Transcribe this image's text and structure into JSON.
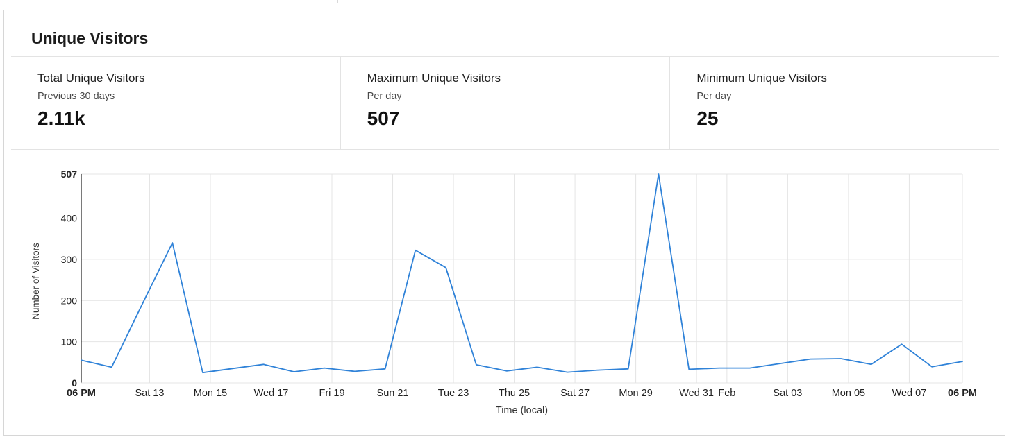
{
  "panel": {
    "title": "Unique Visitors"
  },
  "stats": [
    {
      "label": "Total Unique Visitors",
      "sub": "Previous 30 days",
      "value": "2.11k"
    },
    {
      "label": "Maximum Unique Visitors",
      "sub": "Per day",
      "value": "507"
    },
    {
      "label": "Minimum Unique Visitors",
      "sub": "Per day",
      "value": "25"
    }
  ],
  "chart_data": {
    "type": "line",
    "xlabel": "Time (local)",
    "ylabel": "Number of Visitors",
    "ylim": [
      0,
      507
    ],
    "yticks": [
      0,
      100,
      200,
      300,
      400,
      507
    ],
    "grid": true,
    "line_color": "#2f82d8",
    "x_ticks": [
      {
        "label": "06 PM",
        "index": 0,
        "bold": true
      },
      {
        "label": "Sat 13",
        "index": 2.25
      },
      {
        "label": "Mon 15",
        "index": 4.25
      },
      {
        "label": "Wed 17",
        "index": 6.25
      },
      {
        "label": "Fri 19",
        "index": 8.25
      },
      {
        "label": "Sun 21",
        "index": 10.25
      },
      {
        "label": "Tue 23",
        "index": 12.25
      },
      {
        "label": "Thu 25",
        "index": 14.25
      },
      {
        "label": "Sat 27",
        "index": 16.25
      },
      {
        "label": "Mon 29",
        "index": 18.25
      },
      {
        "label": "Wed 31",
        "index": 20.25
      },
      {
        "label": "Feb",
        "index": 21.25
      },
      {
        "label": "Sat 03",
        "index": 23.25
      },
      {
        "label": "Mon 05",
        "index": 25.25
      },
      {
        "label": "Wed 07",
        "index": 27.25
      },
      {
        "label": "06 PM",
        "index": 29,
        "bold": true
      }
    ],
    "series": [
      {
        "values": [
          55,
          38,
          190,
          340,
          25,
          35,
          45,
          27,
          36,
          28,
          34,
          322,
          280,
          44,
          29,
          38,
          26,
          31,
          34,
          507,
          33,
          36,
          36,
          47,
          58,
          59,
          45,
          94,
          39,
          52
        ]
      }
    ]
  }
}
